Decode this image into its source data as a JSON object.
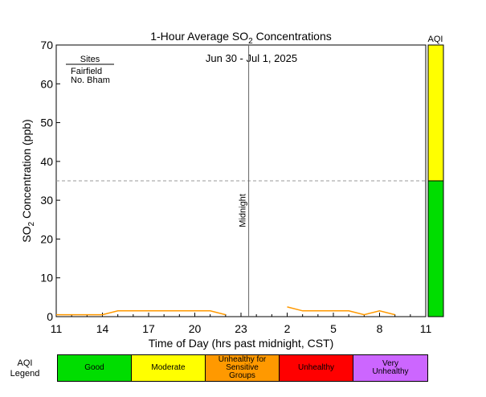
{
  "chart_data": {
    "type": "line",
    "title": "1-Hour Average SO",
    "title_sub": "2",
    "title_suffix": " Concentrations",
    "subtitle": "Jun 30 - Jul 1, 2025",
    "xlabel": "Time of Day (hrs past midnight, CST)",
    "ylabel_prefix": "SO",
    "ylabel_sub": "2",
    "ylabel_suffix": " Concentration (ppb)",
    "x_ticks": [
      "11",
      "14",
      "17",
      "20",
      "23",
      "2",
      "5",
      "8",
      "11"
    ],
    "y_ticks": [
      "0",
      "10",
      "20",
      "30",
      "40",
      "50",
      "60",
      "70"
    ],
    "xlim": [
      0,
      24
    ],
    "ylim": [
      0,
      70
    ],
    "grid": false,
    "midnight_label": "Midnight",
    "midnight_x": 13,
    "threshold_y": 35,
    "legend": {
      "title": "Sites",
      "placement": "top-left",
      "entries": [
        {
          "name": "Fairfield",
          "color": "#33ccdd"
        },
        {
          "name": "No. Bham",
          "color": "#ff9900"
        }
      ]
    },
    "series": [
      {
        "name": "Fairfield",
        "color": "#33ccdd",
        "x": [],
        "y": []
      },
      {
        "name": "No. Bham",
        "color": "#ff9900",
        "x": [
          0,
          1,
          2,
          3,
          4,
          5,
          6,
          7,
          8,
          9,
          10,
          11,
          15,
          16,
          17,
          18,
          19,
          20,
          21,
          22,
          23
        ],
        "y": [
          0.5,
          0.5,
          0.5,
          0.5,
          1.5,
          1.5,
          1.5,
          1.5,
          1.5,
          1.5,
          1.5,
          0.5,
          2.5,
          1.5,
          1.5,
          1.5,
          1.5,
          0.5,
          1.5,
          0.5,
          null
        ]
      }
    ],
    "aqi_bar": {
      "label": "AQI",
      "segments": [
        {
          "from": 0,
          "to": 35,
          "color": "#00dd00"
        },
        {
          "from": 35,
          "to": 70,
          "color": "#ffff00"
        }
      ]
    }
  },
  "aqi_legend": {
    "title_line1": "AQI",
    "title_line2": "Legend",
    "items": [
      {
        "label": "Good",
        "color": "#00dd00"
      },
      {
        "label": "Moderate",
        "color": "#ffff00"
      },
      {
        "label": "Unhealthy for Sensitive Groups",
        "color": "#ff9900"
      },
      {
        "label": "Unhealthy",
        "color": "#ff0000"
      },
      {
        "label": "Very Unhealthy",
        "color": "#cc66ff"
      }
    ]
  }
}
